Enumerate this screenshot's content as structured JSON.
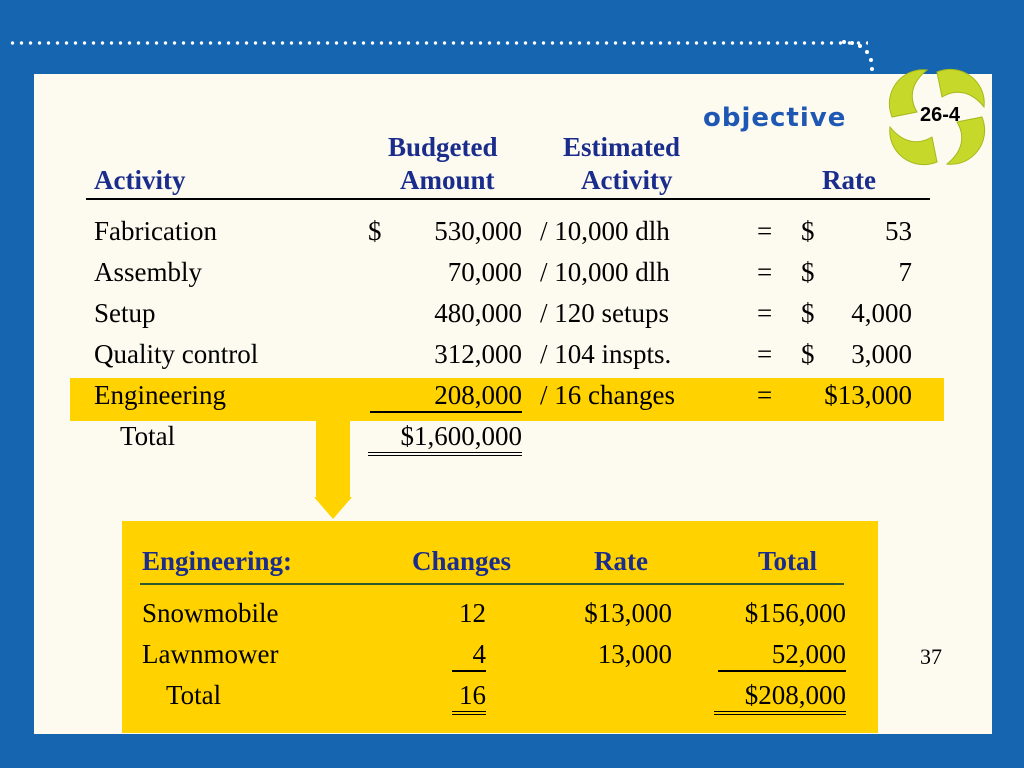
{
  "badge": {
    "objective_word": "objective",
    "number": "26-4"
  },
  "table1": {
    "headers": {
      "activity": "Activity",
      "budgeted_line1": "Budgeted",
      "budgeted_line2": "Amount",
      "estimated_line1": "Estimated",
      "estimated_line2": "Activity",
      "rate": "Rate"
    },
    "rows": [
      {
        "activity": "Fabrication",
        "dollar": "$",
        "amount": "530,000",
        "estimated": "/ 10,000 dlh",
        "eq": "=",
        "rate_dollar": "$",
        "rate": "53"
      },
      {
        "activity": "Assembly",
        "dollar": "",
        "amount": "70,000",
        "estimated": "/ 10,000 dlh",
        "eq": "=",
        "rate_dollar": "$",
        "rate": "7"
      },
      {
        "activity": "Setup",
        "dollar": "",
        "amount": "480,000",
        "estimated": "/ 120 setups",
        "eq": "=",
        "rate_dollar": "$",
        "rate": "4,000"
      },
      {
        "activity": "Quality control",
        "dollar": "",
        "amount": "312,000",
        "estimated": "/ 104 inspts.",
        "eq": "=",
        "rate_dollar": "$",
        "rate": "3,000"
      },
      {
        "activity": "Engineering",
        "dollar": "",
        "amount": "208,000",
        "estimated": "/ 16 changes",
        "eq": "=",
        "rate_dollar": "",
        "rate": "$13,000"
      }
    ],
    "total_label": "Total",
    "total_amount": "$1,600,000"
  },
  "table2": {
    "headers": {
      "label": "Engineering:",
      "changes": "Changes",
      "rate": "Rate",
      "total": "Total"
    },
    "rows": [
      {
        "product": "Snowmobile",
        "changes": "12",
        "rate": "$13,000",
        "total": "$156,000"
      },
      {
        "product": "Lawnmower",
        "changes": "4",
        "rate": "13,000",
        "total": "52,000"
      }
    ],
    "total_label": "Total",
    "total_changes": "16",
    "total_amount": "$208,000"
  },
  "page_number": "37",
  "colors": {
    "background": "#1565b0",
    "panel": "#fdfbef",
    "highlight": "#ffd200",
    "header_text": "#1a2c8c",
    "objective_text": "#1f57b5"
  }
}
